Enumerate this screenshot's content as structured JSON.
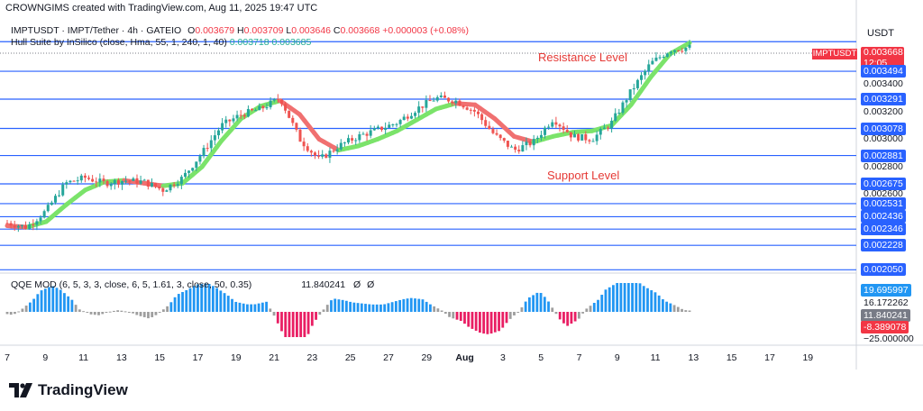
{
  "header": "CROWNGIMS created with TradingView.com, Aug 11, 2025 19:47 UTC",
  "legend": {
    "symbol_line": "IMPTUSDT · IMPT/Tether · 4h · GATEIO",
    "o_label": "O",
    "o_value": "0.003679",
    "h_label": "H",
    "h_value": "0.003709",
    "l_label": "L",
    "l_value": "0.003646",
    "c_label": "C",
    "c_value": "0.003668",
    "change": "+0.000003 (+0.08%)",
    "indicator_line": "Hull Suite by InSilico (close, Hma, 55, 1, 240, 1, 40)",
    "hull_value_1": "0.003718",
    "hull_value_2": "0.003685"
  },
  "axis": {
    "currency": "USDT",
    "symbol_tag": "IMPTUSDT",
    "current_price": "0.003668",
    "countdown": "12:05",
    "price_labels": [
      {
        "text": "0.003494",
        "style": "blue"
      },
      {
        "text": "0.003400",
        "style": "plain"
      },
      {
        "text": "0.003291",
        "style": "blue"
      },
      {
        "text": "0.003200",
        "style": "plain"
      },
      {
        "text": "0.003078",
        "style": "blue"
      },
      {
        "text": "0.003000",
        "style": "plain"
      },
      {
        "text": "0.002881",
        "style": "blue"
      },
      {
        "text": "0.002800",
        "style": "plain"
      },
      {
        "text": "0.002675",
        "style": "blue"
      },
      {
        "text": "0.002600",
        "style": "plain"
      },
      {
        "text": "0.002531",
        "style": "blue"
      },
      {
        "text": "0.002436",
        "style": "blue"
      },
      {
        "text": "0.002346",
        "style": "blue"
      },
      {
        "text": "0.002228",
        "style": "blue"
      },
      {
        "text": "0.002050",
        "style": "blue"
      }
    ]
  },
  "annotations": {
    "resistance": "Resistance Level",
    "support": "Support Level"
  },
  "qqe": {
    "legend": "QQE MOD (6, 5, 3, 3, close, 6, 5, 1.61, 3, close, 50, 0.35)",
    "value": "11.840241",
    "labels": [
      {
        "text": "19.695997",
        "bg": "#2196f3",
        "color": "#ffffff"
      },
      {
        "text": "16.172262",
        "bg": "transparent",
        "color": "#131722"
      },
      {
        "text": "11.840241",
        "bg": "#787b86",
        "color": "#ffffff"
      },
      {
        "text": "-8.389078",
        "bg": "#f23645",
        "color": "#ffffff"
      },
      {
        "text": "−25.000000",
        "bg": "transparent",
        "color": "#131722"
      }
    ]
  },
  "dates": [
    "7",
    "9",
    "11",
    "13",
    "15",
    "17",
    "19",
    "21",
    "23",
    "25",
    "27",
    "29",
    "Aug",
    "3",
    "5",
    "7",
    "9",
    "11",
    "13",
    "15",
    "17",
    "19"
  ],
  "logo": "TradingView",
  "colors": {
    "up": "#26a69a",
    "down": "#ef5350",
    "hull_up": "#7be36a",
    "hull_down": "#f07070",
    "level": "#2962ff",
    "qqe_up": "#2196f3",
    "qqe_down": "#e91e63",
    "qqe_neutral": "#9e9e9e"
  },
  "chart_data": {
    "type": "line",
    "title": "IMPTUSDT · IMPT/Tether · 4h · GATEIO",
    "levels": [
      0.003494,
      0.003291,
      0.003078,
      0.002881,
      0.002675,
      0.002531,
      0.002436,
      0.002346,
      0.002228,
      0.00205
    ],
    "ylim": [
      0.00198,
      0.00375
    ],
    "x_ticks": [
      "7",
      "9",
      "11",
      "13",
      "15",
      "17",
      "19",
      "21",
      "23",
      "25",
      "27",
      "29",
      "Aug",
      "3",
      "5",
      "7",
      "9",
      "11",
      "13",
      "15",
      "17",
      "19"
    ],
    "series": [
      {
        "name": "close",
        "x": [
          "Jul 7",
          "Jul 8",
          "Jul 9",
          "Jul 10",
          "Jul 11",
          "Jul 12",
          "Jul 13",
          "Jul 14",
          "Jul 15",
          "Jul 16",
          "Jul 17",
          "Jul 18",
          "Jul 19",
          "Jul 20",
          "Jul 21",
          "Jul 22",
          "Jul 23",
          "Jul 24",
          "Jul 25",
          "Jul 26",
          "Jul 27",
          "Jul 28",
          "Jul 29",
          "Jul 30",
          "Jul 31",
          "Aug 1",
          "Aug 2",
          "Aug 3",
          "Aug 4",
          "Aug 5",
          "Aug 6",
          "Aug 7",
          "Aug 8",
          "Aug 9",
          "Aug 10",
          "Aug 11"
        ],
        "values": [
          0.00239,
          0.00236,
          0.00248,
          0.00268,
          0.00272,
          0.00268,
          0.0027,
          0.00269,
          0.00263,
          0.00272,
          0.0029,
          0.0031,
          0.00318,
          0.00322,
          0.0033,
          0.003,
          0.00285,
          0.00295,
          0.00302,
          0.00307,
          0.00312,
          0.00322,
          0.0033,
          0.00328,
          0.0032,
          0.00303,
          0.00292,
          0.00298,
          0.00315,
          0.00302,
          0.003,
          0.00312,
          0.00335,
          0.00355,
          0.00365,
          0.003668
        ]
      },
      {
        "name": "Hull Suite",
        "x": [
          "Jul 7",
          "Jul 8",
          "Jul 9",
          "Jul 10",
          "Jul 11",
          "Jul 12",
          "Jul 13",
          "Jul 14",
          "Jul 15",
          "Jul 16",
          "Jul 17",
          "Jul 18",
          "Jul 19",
          "Jul 20",
          "Jul 21",
          "Jul 22",
          "Jul 23",
          "Jul 24",
          "Jul 25",
          "Jul 26",
          "Jul 27",
          "Jul 28",
          "Jul 29",
          "Jul 30",
          "Jul 31",
          "Aug 1",
          "Aug 2",
          "Aug 3",
          "Aug 4",
          "Aug 5",
          "Aug 6",
          "Aug 7",
          "Aug 8",
          "Aug 9",
          "Aug 10",
          "Aug 11"
        ],
        "values": [
          0.00237,
          0.00236,
          0.0024,
          0.00252,
          0.00263,
          0.00269,
          0.0027,
          0.00268,
          0.00266,
          0.00268,
          0.0028,
          0.00299,
          0.00315,
          0.00324,
          0.00328,
          0.00318,
          0.003,
          0.00292,
          0.00295,
          0.003,
          0.00306,
          0.00314,
          0.00322,
          0.00326,
          0.00325,
          0.00315,
          0.00302,
          0.00298,
          0.00302,
          0.00305,
          0.00306,
          0.0031,
          0.00325,
          0.00345,
          0.00362,
          0.0037
        ]
      }
    ]
  }
}
